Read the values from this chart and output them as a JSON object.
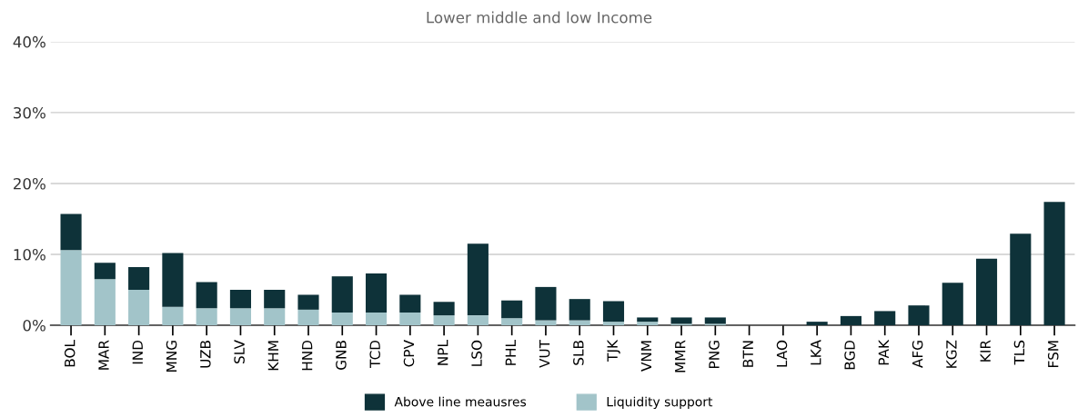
{
  "chart_data": {
    "type": "bar",
    "title": "Lower middle and low Income",
    "stacked": true,
    "categories": [
      "BOL",
      "MAR",
      "IND",
      "MNG",
      "UZB",
      "SLV",
      "KHM",
      "HND",
      "GNB",
      "TCD",
      "CPV",
      "NPL",
      "LSO",
      "PHL",
      "VUT",
      "SLB",
      "TJK",
      "VNM",
      "MMR",
      "PNG",
      "BTN",
      "LAO",
      "LKA",
      "BGD",
      "PAK",
      "AFG",
      "KGZ",
      "KIR",
      "TLS",
      "FSM"
    ],
    "series": [
      {
        "name": "Liquidity support",
        "color": "#a2c4c9",
        "values": [
          10.6,
          6.5,
          5.0,
          2.6,
          2.4,
          2.4,
          2.4,
          2.2,
          1.8,
          1.8,
          1.8,
          1.4,
          1.4,
          1.0,
          0.7,
          0.7,
          0.5,
          0.5,
          0.2,
          0.2,
          0,
          0,
          0,
          0,
          0,
          0,
          0,
          0,
          0,
          0
        ]
      },
      {
        "name": "Above line meausres",
        "color": "#0e3239",
        "values": [
          5.1,
          2.3,
          3.2,
          7.6,
          3.7,
          2.6,
          2.6,
          2.1,
          5.1,
          5.5,
          2.5,
          1.9,
          10.1,
          2.5,
          4.7,
          3.0,
          2.9,
          0.6,
          0.9,
          0.9,
          0,
          0,
          0.5,
          1.3,
          2.0,
          2.8,
          6.0,
          9.4,
          12.9,
          17.4
        ]
      }
    ],
    "ylim": [
      0,
      40
    ],
    "yticks": [
      {
        "value": 0,
        "label": "0%"
      },
      {
        "value": 10,
        "label": "10%"
      },
      {
        "value": 20,
        "label": "20%"
      },
      {
        "value": 30,
        "label": "30%"
      },
      {
        "value": 40,
        "label": "40%"
      }
    ],
    "grid": "y",
    "legend": "bottom"
  }
}
